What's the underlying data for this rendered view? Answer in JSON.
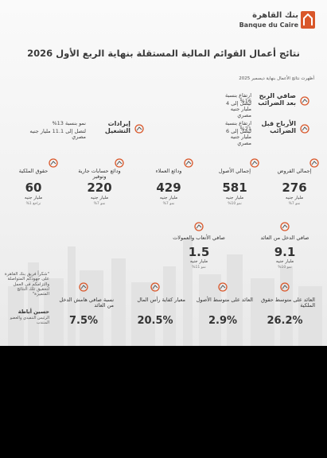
{
  "header": {
    "bank_name_ar": "بنك القاهرة",
    "bank_name_en": "Banque du Caire"
  },
  "title": "نتائج أعمال القوائم المالية المستقلة بنهاية الربع الأول 2026",
  "subtitle": "أظهرت نتائج الأعمال بنهاية ديسمبر 2025",
  "highlights": [
    {
      "label": "صافي الربح بعد الضرائب",
      "change": "ارتفاع بنسبة 16%",
      "detail": "ليصل إلى 4 مليار جنيه مصري"
    },
    {
      "label": "الأرباح قبل الضرائب",
      "change": "ارتفاع بنسبة 21%",
      "detail": "ليصل إلى 6 مليار جنيه مصري"
    },
    {
      "label": "إيرادات التشغيل",
      "change": "نمو بنسبة 13%",
      "detail": "لتصل إلى 11.1 مليار جنيه مصري"
    }
  ],
  "metrics": [
    {
      "label": "إجمالي القروض",
      "value": "276",
      "unit": "مليار جنيه",
      "change": "نمو 7%"
    },
    {
      "label": "إجمالي الأصول",
      "value": "581",
      "unit": "مليار جنيه",
      "change": "نمو 10%"
    },
    {
      "label": "ودائع العملاء",
      "value": "429",
      "unit": "مليار جنيه",
      "change": "نمو 7%"
    },
    {
      "label": "ودائع حسابات جارية وتوفير",
      "value": "220",
      "unit": "مليار جنيه",
      "change": "نمو 7%"
    },
    {
      "label": "حقوق الملكية",
      "value": "60",
      "unit": "مليار جنيه",
      "change": "تراجع 1%"
    }
  ],
  "income": [
    {
      "label": "صافي الدخل من العائد",
      "value": "9.1",
      "unit": "مليار جنيه",
      "change": "نمو 10%"
    },
    {
      "label": "صافي الأتعاب والعمولات",
      "value": "1.5",
      "unit": "مليار جنيه",
      "change": "نمو 11%"
    }
  ],
  "ratios": [
    {
      "label": "العائد على متوسط حقوق الملكية",
      "value": "26.2%"
    },
    {
      "label": "العائد على متوسط الأصول",
      "value": "2.9%"
    },
    {
      "label": "معيار كفاية رأس المال",
      "value": "20.5%"
    },
    {
      "label": "نسبة صافي هامش الدخل من العائد",
      "value": "7.5%"
    }
  ],
  "quote": {
    "text": "\"شكراً فريق بنك القاهرة على جهودكم المتواصلة والتزامكم في العمل لتحقيق تلك النتائج المتميزة\"",
    "name": "حسين أباظة",
    "role": "الرئيس التنفيذي والعضو المنتدب"
  }
}
